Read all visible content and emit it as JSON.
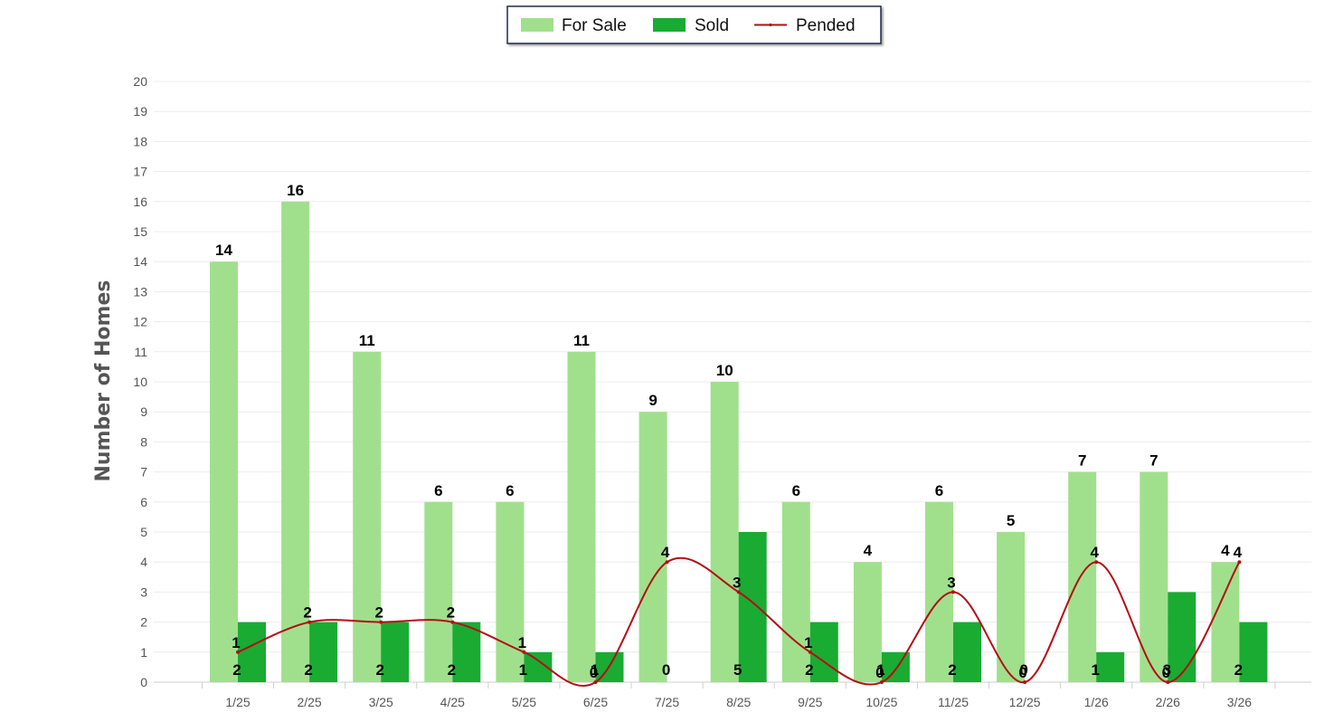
{
  "chart_data": {
    "type": "bar",
    "title": "",
    "xlabel": "",
    "ylabel": "Number of Homes",
    "ylim": [
      0,
      20
    ],
    "yticks": [
      0,
      1,
      2,
      3,
      4,
      5,
      6,
      7,
      8,
      9,
      10,
      11,
      12,
      13,
      14,
      15,
      16,
      17,
      18,
      19,
      20
    ],
    "grid": true,
    "legend_position": "top-center",
    "categories": [
      "1/25",
      "2/25",
      "3/25",
      "4/25",
      "5/25",
      "6/25",
      "7/25",
      "8/25",
      "9/25",
      "10/25",
      "11/25",
      "12/25",
      "1/26",
      "2/26",
      "3/26"
    ],
    "series": [
      {
        "name": "For Sale",
        "type": "bar",
        "color": "#a0e08c",
        "values": [
          14,
          16,
          11,
          6,
          6,
          11,
          9,
          10,
          6,
          4,
          6,
          5,
          7,
          7,
          4
        ]
      },
      {
        "name": "Sold",
        "type": "bar",
        "color": "#1aab33",
        "values": [
          2,
          2,
          2,
          2,
          1,
          1,
          0,
          5,
          2,
          1,
          2,
          0,
          1,
          3,
          2
        ]
      },
      {
        "name": "Pended",
        "type": "line",
        "color": "#b30f16",
        "values": [
          1,
          2,
          2,
          2,
          1,
          0,
          4,
          3,
          1,
          0,
          3,
          0,
          4,
          0,
          4
        ]
      }
    ]
  }
}
